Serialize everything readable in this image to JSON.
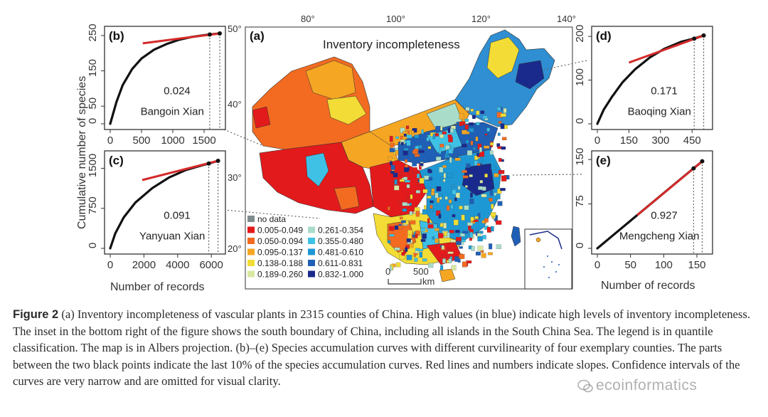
{
  "figure": {
    "panel_a": {
      "label": "(a)",
      "title": "Inventory incompleteness",
      "lon_ticks": [
        "80°",
        "100°",
        "120°",
        "140°"
      ],
      "lat_ticks": [
        "50°",
        "40°",
        "30°",
        "20°"
      ],
      "scale_left": "0",
      "scale_mid": "500",
      "scale_unit": "km",
      "legend": [
        {
          "label": "no data",
          "color": "#7f8c8d"
        },
        {
          "label": "0.005-0.049",
          "color": "#e31a1c"
        },
        {
          "label": "0.050-0.094",
          "color": "#f26b21"
        },
        {
          "label": "0.095-0.137",
          "color": "#f5a623"
        },
        {
          "label": "0.138-0.188",
          "color": "#f2dc35"
        },
        {
          "label": "0.189-0.260",
          "color": "#d8e8a0"
        },
        {
          "label": "0.261-0.354",
          "color": "#a9ddc9"
        },
        {
          "label": "0.355-0.480",
          "color": "#3fc1e6"
        },
        {
          "label": "0.481-0.610",
          "color": "#1e98d4"
        },
        {
          "label": "0.611-0.831",
          "color": "#1f5fb5"
        },
        {
          "label": "0.832-1.000",
          "color": "#1a2a8c"
        }
      ]
    },
    "y_axis_label": "Cumulative number of species",
    "x_axis_label_left": "Number of records",
    "x_axis_label_right": "Number of records"
  },
  "chart_data": [
    {
      "type": "line",
      "panel": "(b)",
      "county": "Bangoin Xian",
      "slope": "0.024",
      "xlim": [
        0,
        1750
      ],
      "ylim": [
        0,
        260
      ],
      "x_ticks": [
        "0",
        "500",
        "1000",
        "1500"
      ],
      "y_ticks": [
        "0",
        "50",
        "150",
        "250"
      ],
      "curve": {
        "points": [
          [
            0,
            0
          ],
          [
            100,
            62
          ],
          [
            200,
            110
          ],
          [
            350,
            155
          ],
          [
            500,
            185
          ],
          [
            700,
            210
          ],
          [
            900,
            226
          ],
          [
            1100,
            238
          ],
          [
            1300,
            246
          ],
          [
            1500,
            251
          ],
          [
            1590,
            253
          ],
          [
            1750,
            256
          ]
        ]
      },
      "slope_line": [
        [
          520,
          228
        ],
        [
          1750,
          256
        ]
      ],
      "black_points": [
        [
          1590,
          253
        ],
        [
          1750,
          256
        ]
      ]
    },
    {
      "type": "line",
      "panel": "(c)",
      "county": "Yanyuan Xian",
      "slope": "0.091",
      "xlim": [
        0,
        6500
      ],
      "ylim": [
        0,
        1720
      ],
      "x_ticks": [
        "0",
        "2000",
        "4000",
        "6000"
      ],
      "y_ticks": [
        "0",
        "750",
        "1500"
      ],
      "curve": {
        "points": [
          [
            0,
            0
          ],
          [
            300,
            280
          ],
          [
            800,
            580
          ],
          [
            1500,
            860
          ],
          [
            2500,
            1130
          ],
          [
            3500,
            1330
          ],
          [
            4500,
            1470
          ],
          [
            5500,
            1560
          ],
          [
            5850,
            1590
          ],
          [
            6400,
            1640
          ]
        ]
      },
      "slope_line": [
        [
          1900,
          1280
        ],
        [
          6400,
          1640
        ]
      ],
      "black_points": [
        [
          5850,
          1590
        ],
        [
          6400,
          1640
        ]
      ]
    },
    {
      "type": "line",
      "panel": "(d)",
      "county": "Baoqing Xian",
      "slope": "0.171",
      "xlim": [
        0,
        520
      ],
      "ylim": [
        0,
        210
      ],
      "x_ticks": [
        "0",
        "150",
        "300",
        "450"
      ],
      "y_ticks": [
        "0",
        "100",
        "200"
      ],
      "curve": {
        "points": [
          [
            0,
            0
          ],
          [
            30,
            32
          ],
          [
            70,
            62
          ],
          [
            120,
            95
          ],
          [
            180,
            125
          ],
          [
            250,
            152
          ],
          [
            320,
            172
          ],
          [
            400,
            188
          ],
          [
            460,
            195
          ],
          [
            505,
            202
          ]
        ]
      },
      "slope_line": [
        [
          150,
          140
        ],
        [
          505,
          202
        ]
      ],
      "black_points": [
        [
          460,
          195
        ],
        [
          505,
          202
        ]
      ]
    },
    {
      "type": "line",
      "panel": "(e)",
      "county": "Mengcheng Xian",
      "slope": "0.927",
      "xlim": [
        0,
        165
      ],
      "ylim": [
        0,
        155
      ],
      "x_ticks": [
        "0",
        "50",
        "100",
        "150"
      ],
      "y_ticks": [
        "0",
        "75",
        "150"
      ],
      "curve": {
        "points": [
          [
            0,
            0
          ],
          [
            30,
            28
          ],
          [
            60,
            56
          ],
          [
            90,
            84
          ],
          [
            120,
            112
          ],
          [
            145,
            135
          ],
          [
            158,
            147
          ]
        ]
      },
      "slope_line": [
        [
          60,
          56
        ],
        [
          158,
          147
        ]
      ],
      "black_points": [
        [
          145,
          135
        ],
        [
          158,
          147
        ]
      ]
    }
  ],
  "caption": {
    "label": "Figure 2",
    "text": " (a) Inventory incompleteness of vascular plants in 2315 counties of China. High values (in blue) indicate high levels of inventory incompleteness. The inset in the bottom right of the figure shows the south boundary of China, including all islands in the South China Sea. The legend is in quantile classification. The map is in Albers projection. (b)–(e) Species accumulation curves with different curvilinearity of four exemplary counties. The parts between the two black points indicate the last 10% of the species accumulation curves. Red lines and numbers indicate slopes. Confidence intervals of the curves are very narrow and are omitted for visual clarity."
  },
  "watermark": "ecoinformatics"
}
